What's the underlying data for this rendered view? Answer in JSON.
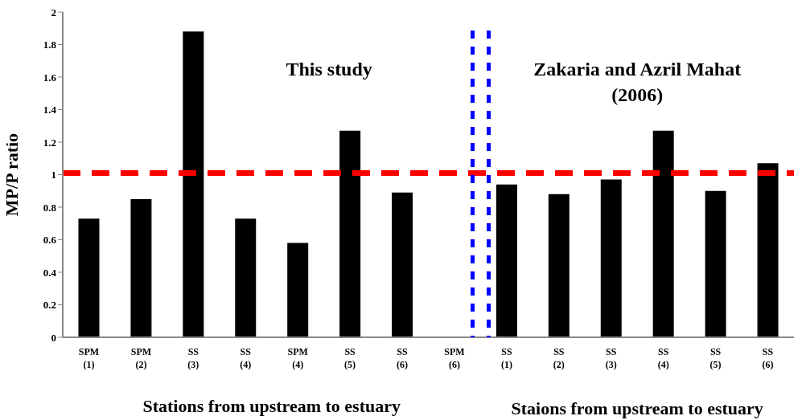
{
  "chart_data": {
    "type": "bar",
    "ylabel": "MP/P ratio",
    "xlabel": "Stations from upstream to estuary",
    "annotations": [
      "This study",
      "Zakaria and Azril Mahat (2006)",
      "Staions from upstream to estuary"
    ],
    "categories": [
      "SPM (1)",
      "SPM (2)",
      "SS (3)",
      "SS (4)",
      "SPM (4)",
      "SS (5)",
      "SS (6)",
      "SPM (6)",
      "SS (1)",
      "SS (2)",
      "SS (3)",
      "SS (4)",
      "SS (5)",
      "SS (6)"
    ],
    "values": [
      0.73,
      0.85,
      1.88,
      0.73,
      0.58,
      1.27,
      0.89,
      null,
      0.94,
      0.88,
      0.97,
      1.27,
      0.9,
      1.07
    ],
    "color": "#000000",
    "ylim": [
      0,
      2
    ],
    "yticks": [
      0,
      0.2,
      0.4,
      0.6,
      0.8,
      1,
      1.2,
      1.4,
      1.6,
      1.8,
      2
    ],
    "ref_lines": [
      {
        "axis": "y",
        "value": 1.01,
        "color": "#ff0000",
        "line_style": "dashed"
      }
    ],
    "grid": false,
    "legend": false
  }
}
